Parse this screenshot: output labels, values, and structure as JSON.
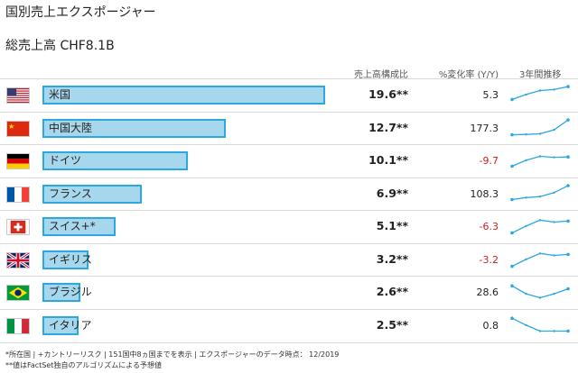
{
  "title": "国別売上エクスポージャー",
  "total_label": "総売上高 CHF8.1B",
  "columns": {
    "share": "売上高構成比",
    "change": "%変化率 (Y/Y)",
    "trend": "3年間推移"
  },
  "colors": {
    "bar_fill": "#a7d7ec",
    "bar_border": "#2ba8e0",
    "negative": "#d02020",
    "sparkline": "#2ba8e0"
  },
  "rows": [
    {
      "flag": "us-flag-icon",
      "name": "米国",
      "share": "19.6**",
      "share_value": 19.6,
      "change": "5.3",
      "trend": [
        0.3,
        0.55,
        0.75,
        0.8,
        0.95
      ]
    },
    {
      "flag": "cn-flag-icon",
      "name": "中国大陸",
      "share": "12.7**",
      "share_value": 12.7,
      "change": "177.3",
      "trend": [
        0.2,
        0.22,
        0.25,
        0.45,
        0.95
      ]
    },
    {
      "flag": "de-flag-icon",
      "name": "ドイツ",
      "share": "10.1**",
      "share_value": 10.1,
      "change": "-9.7",
      "trend": [
        0.25,
        0.55,
        0.75,
        0.7,
        0.72
      ]
    },
    {
      "flag": "fr-flag-icon",
      "name": "フランス",
      "share": "6.9**",
      "share_value": 6.9,
      "change": "108.3",
      "trend": [
        0.25,
        0.35,
        0.4,
        0.6,
        0.95
      ]
    },
    {
      "flag": "ch-flag-icon",
      "name": "スイス+*",
      "share": "5.1**",
      "share_value": 5.1,
      "change": "-6.3",
      "trend": [
        0.2,
        0.55,
        0.85,
        0.75,
        0.8
      ]
    },
    {
      "flag": "gb-flag-icon",
      "name": "イギリス",
      "share": "3.2**",
      "share_value": 3.2,
      "change": "-3.2",
      "trend": [
        0.2,
        0.55,
        0.85,
        0.75,
        0.8
      ]
    },
    {
      "flag": "br-flag-icon",
      "name": "ブラジル",
      "share": "2.6**",
      "share_value": 2.6,
      "change": "28.6",
      "trend": [
        0.85,
        0.45,
        0.25,
        0.45,
        0.7
      ]
    },
    {
      "flag": "it-flag-icon",
      "name": "イタリア",
      "share": "2.5**",
      "share_value": 2.5,
      "change": "0.8",
      "trend": [
        0.9,
        0.55,
        0.25,
        0.25,
        0.25
      ]
    }
  ],
  "footnotes": [
    "*所在国 | +カントリーリスク | 151国中8ヵ国までを表示 | エクスポージャーのデータ時点： 12/2019",
    "**値はFactSet独自のアルゴリズムによる予想値"
  ]
}
